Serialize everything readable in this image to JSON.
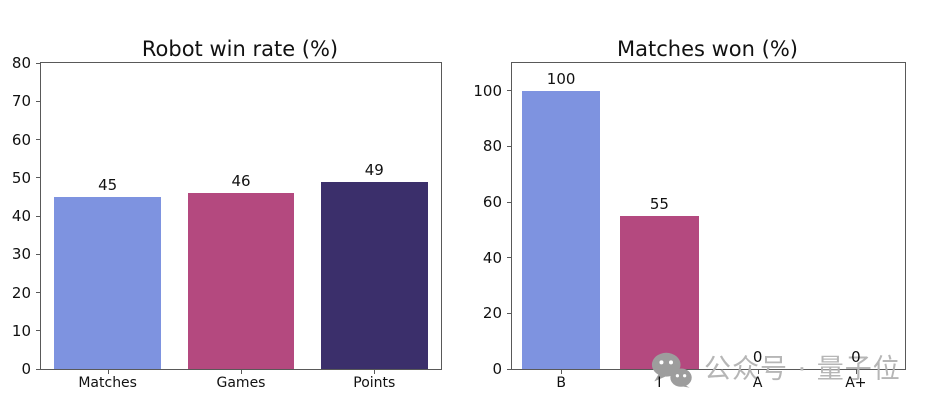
{
  "figure": {
    "background": "#ffffff",
    "spine_color": "#595959"
  },
  "watermark": {
    "icon": "wechat-icon",
    "text": "公众号 · 量子位",
    "color": "#b6b6b6",
    "icon_color": "#9d9d9d"
  },
  "chart_data": [
    {
      "type": "bar",
      "title": "Robot win rate (%)",
      "categories": [
        "Matches",
        "Games",
        "Points"
      ],
      "values": [
        45,
        46,
        49
      ],
      "bar_colors": [
        "#7e93e0",
        "#b4497f",
        "#3b2f6b"
      ],
      "xlabel": "",
      "ylabel": "",
      "ylim": [
        0,
        80
      ],
      "yticks": [
        0,
        10,
        20,
        30,
        40,
        50,
        60,
        70,
        80
      ],
      "grid": false,
      "legend": null,
      "value_labels_shown": true
    },
    {
      "type": "bar",
      "title": "Matches won (%)",
      "categories": [
        "B",
        "I",
        "A",
        "A+"
      ],
      "values": [
        100,
        55,
        0,
        0
      ],
      "bar_colors": [
        "#7e93e0",
        "#b4497f",
        "#3b2f6b",
        "#3b2f6b"
      ],
      "xlabel": "",
      "ylabel": "",
      "ylim": [
        0,
        110
      ],
      "yticks": [
        0,
        20,
        40,
        60,
        80,
        100
      ],
      "grid": false,
      "legend": null,
      "value_labels_shown": true
    }
  ]
}
